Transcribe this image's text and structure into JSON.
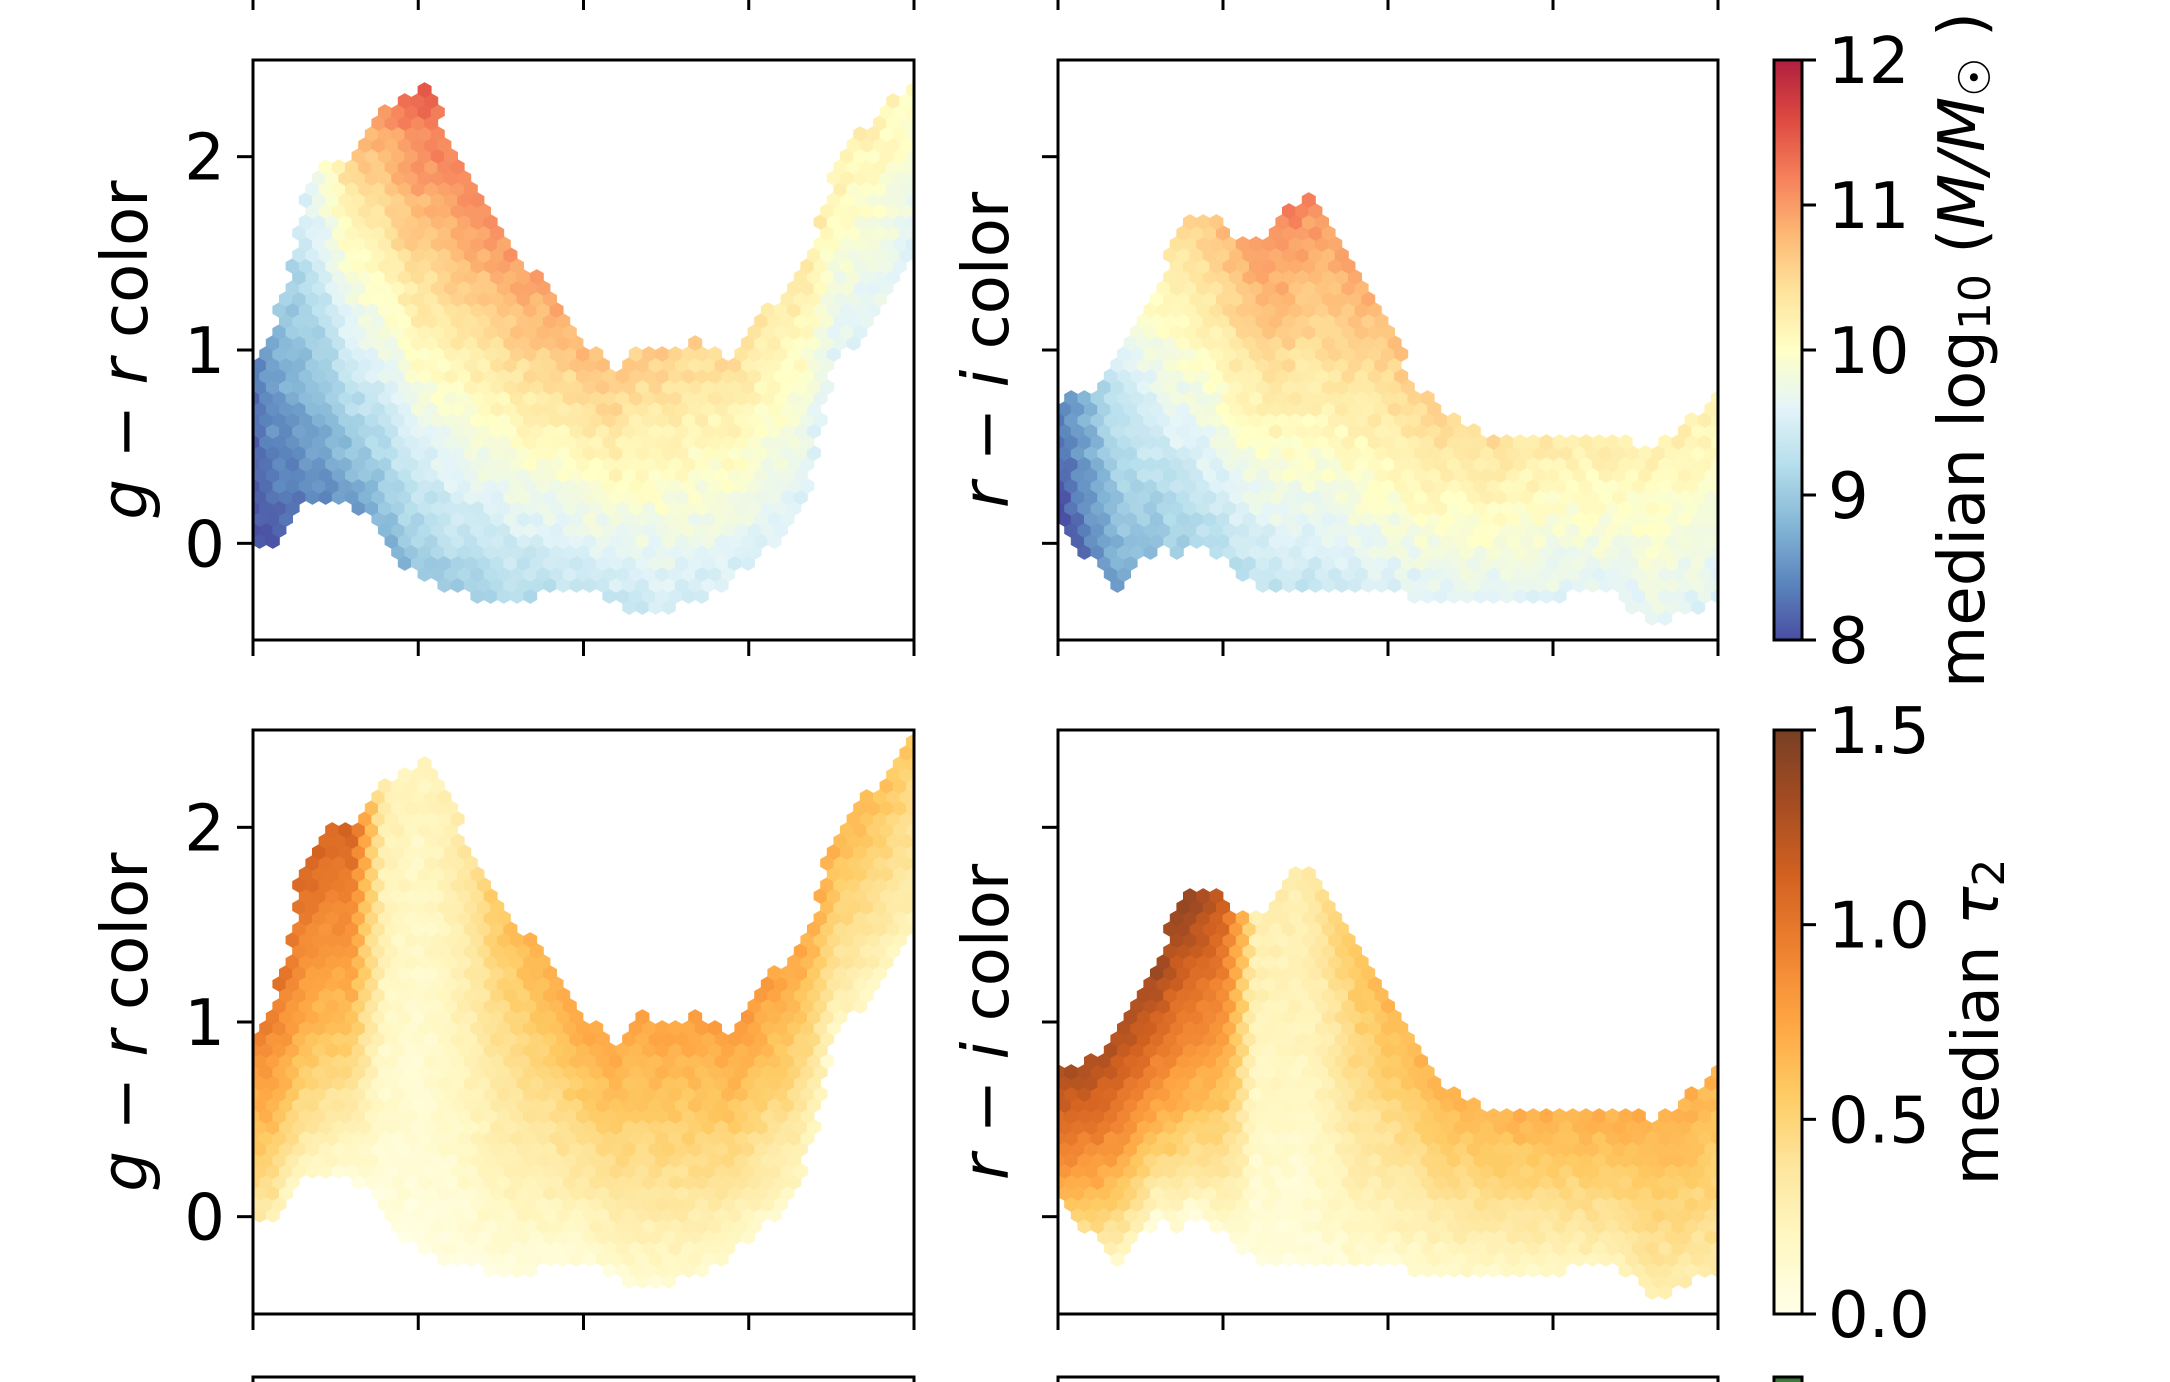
{
  "chart_data": [
    {
      "type": "hexbin",
      "panel": "top-left",
      "ylabel_parts": [
        {
          "t": "g",
          "i": true
        },
        {
          "t": " − "
        },
        {
          "t": "r",
          "i": true
        },
        {
          "t": " color"
        }
      ],
      "ylim": [
        -0.5,
        2.5
      ],
      "yticks": [
        0,
        1,
        2
      ],
      "ytick_labels": [
        "0",
        "1",
        "2"
      ],
      "xlim": [
        0,
        4
      ],
      "xticks": [
        0,
        1,
        2,
        3,
        4
      ],
      "colormap": "mass",
      "envelope": {
        "x": [
          0,
          0.1,
          0.2,
          0.3,
          0.45,
          0.6,
          0.75,
          0.9,
          1.05,
          1.2,
          1.4,
          1.6,
          1.8,
          2.0,
          2.2,
          2.3,
          2.5,
          2.7,
          2.9,
          3.1,
          3.3,
          3.4,
          3.5,
          3.6,
          3.8,
          4.0
        ],
        "upper": [
          0.92,
          1.05,
          1.35,
          1.8,
          2.0,
          2.0,
          2.2,
          2.3,
          2.35,
          2.1,
          1.8,
          1.5,
          1.3,
          1.05,
          0.9,
          1.05,
          1.0,
          1.05,
          0.95,
          1.2,
          1.4,
          1.6,
          1.9,
          2.1,
          2.2,
          2.45
        ],
        "lower": [
          0.0,
          -0.05,
          0.1,
          0.2,
          0.2,
          0.2,
          0.1,
          -0.1,
          -0.2,
          -0.25,
          -0.28,
          -0.3,
          -0.25,
          -0.25,
          -0.3,
          -0.35,
          -0.35,
          -0.3,
          -0.2,
          -0.05,
          0.1,
          0.45,
          0.9,
          1.0,
          1.2,
          1.5
        ]
      },
      "color_profile": {
        "x": [
          0,
          0.3,
          0.6,
          1.0,
          1.5,
          2.0,
          3.0,
          4.0
        ],
        "low": [
          8.0,
          8.3,
          8.6,
          8.9,
          9.1,
          9.3,
          9.5,
          9.6
        ],
        "high": [
          8.3,
          9.5,
          10.6,
          11.4,
          11.1,
          10.8,
          10.4,
          10.1
        ]
      }
    },
    {
      "type": "hexbin",
      "panel": "top-right",
      "ylabel_parts": [
        {
          "t": "r",
          "i": true
        },
        {
          "t": " − "
        },
        {
          "t": "i",
          "i": true
        },
        {
          "t": " color"
        }
      ],
      "ylim": [
        -0.5,
        2.5
      ],
      "yticks": [
        0,
        1,
        2
      ],
      "ytick_labels": [],
      "xlim": [
        0,
        4
      ],
      "xticks": [
        0,
        1,
        2,
        3,
        4
      ],
      "colormap": "mass",
      "envelope": {
        "x": [
          0,
          0.2,
          0.4,
          0.6,
          0.7,
          0.8,
          1.0,
          1.1,
          1.3,
          1.4,
          1.5,
          1.6,
          1.8,
          2.0,
          2.2,
          2.4,
          2.6,
          3.0,
          3.4,
          3.6,
          3.8,
          4.0
        ],
        "upper": [
          0.75,
          0.8,
          1.0,
          1.3,
          1.55,
          1.7,
          1.7,
          1.55,
          1.6,
          1.75,
          1.8,
          1.7,
          1.4,
          1.1,
          0.8,
          0.65,
          0.55,
          0.55,
          0.55,
          0.5,
          0.6,
          0.8
        ],
        "lower": [
          0.1,
          -0.1,
          -0.25,
          0.0,
          -0.1,
          0.0,
          -0.1,
          -0.2,
          -0.25,
          -0.25,
          -0.25,
          -0.25,
          -0.25,
          -0.25,
          -0.28,
          -0.3,
          -0.3,
          -0.28,
          -0.25,
          -0.45,
          -0.35,
          -0.3
        ]
      },
      "color_profile": {
        "x": [
          0,
          0.4,
          0.8,
          1.4,
          2.0,
          3.0,
          4.0
        ],
        "low": [
          8.0,
          8.7,
          9.1,
          9.3,
          9.5,
          9.6,
          9.6
        ],
        "high": [
          8.3,
          9.6,
          10.6,
          11.2,
          10.7,
          10.3,
          10.2
        ]
      }
    },
    {
      "type": "hexbin",
      "panel": "bottom-left",
      "ylabel_parts": [
        {
          "t": "g",
          "i": true
        },
        {
          "t": " − "
        },
        {
          "t": "r",
          "i": true
        },
        {
          "t": " color"
        }
      ],
      "ylim": [
        -0.5,
        2.5
      ],
      "yticks": [
        0,
        1,
        2
      ],
      "ytick_labels": [
        "0",
        "1",
        "2"
      ],
      "xlim": [
        0,
        4
      ],
      "xticks": [
        0,
        1,
        2,
        3,
        4
      ],
      "colormap": "tau",
      "envelope": {
        "x": [
          0,
          0.1,
          0.2,
          0.3,
          0.45,
          0.6,
          0.75,
          0.9,
          1.05,
          1.2,
          1.4,
          1.6,
          1.8,
          2.0,
          2.2,
          2.3,
          2.5,
          2.7,
          2.9,
          3.1,
          3.3,
          3.4,
          3.5,
          3.6,
          3.8,
          4.0
        ],
        "upper": [
          0.92,
          1.05,
          1.35,
          1.8,
          2.0,
          2.0,
          2.2,
          2.3,
          2.35,
          2.1,
          1.8,
          1.5,
          1.3,
          1.05,
          0.9,
          1.05,
          1.0,
          1.05,
          0.95,
          1.2,
          1.4,
          1.6,
          1.9,
          2.1,
          2.2,
          2.45
        ],
        "lower": [
          0.0,
          -0.05,
          0.1,
          0.2,
          0.2,
          0.2,
          0.1,
          -0.1,
          -0.2,
          -0.25,
          -0.28,
          -0.3,
          -0.25,
          -0.25,
          -0.3,
          -0.35,
          -0.35,
          -0.3,
          -0.2,
          -0.05,
          0.1,
          0.45,
          0.9,
          1.0,
          1.2,
          1.5
        ]
      },
      "color_profile": {
        "x": [
          0,
          0.3,
          0.6,
          0.8,
          1.0,
          1.2,
          1.5,
          2.0,
          2.5,
          3.0,
          3.5,
          4.0
        ],
        "low": [
          0.3,
          0.15,
          0.05,
          0.05,
          0.05,
          0.05,
          0.05,
          0.05,
          0.1,
          0.1,
          0.15,
          0.2
        ],
        "high": [
          0.9,
          1.1,
          1.1,
          0.3,
          0.2,
          0.3,
          0.6,
          0.75,
          0.75,
          0.8,
          0.7,
          0.55
        ]
      }
    },
    {
      "type": "hexbin",
      "panel": "bottom-right",
      "ylabel_parts": [
        {
          "t": "r",
          "i": true
        },
        {
          "t": " − "
        },
        {
          "t": "i",
          "i": true
        },
        {
          "t": " color"
        }
      ],
      "ylim": [
        -0.5,
        2.5
      ],
      "yticks": [
        0,
        1,
        2
      ],
      "ytick_labels": [],
      "xlim": [
        0,
        4
      ],
      "xticks": [
        0,
        1,
        2,
        3,
        4
      ],
      "colormap": "tau",
      "envelope": {
        "x": [
          0,
          0.2,
          0.4,
          0.6,
          0.7,
          0.8,
          1.0,
          1.1,
          1.3,
          1.4,
          1.5,
          1.6,
          1.8,
          2.0,
          2.2,
          2.4,
          2.6,
          3.0,
          3.4,
          3.6,
          3.8,
          4.0
        ],
        "upper": [
          0.75,
          0.8,
          1.0,
          1.3,
          1.55,
          1.7,
          1.7,
          1.55,
          1.6,
          1.75,
          1.8,
          1.7,
          1.4,
          1.1,
          0.8,
          0.65,
          0.55,
          0.55,
          0.55,
          0.5,
          0.6,
          0.8
        ],
        "lower": [
          0.1,
          -0.1,
          -0.25,
          0.0,
          -0.1,
          0.0,
          -0.1,
          -0.2,
          -0.25,
          -0.25,
          -0.25,
          -0.25,
          -0.25,
          -0.25,
          -0.28,
          -0.3,
          -0.3,
          -0.28,
          -0.25,
          -0.45,
          -0.35,
          -0.3
        ]
      },
      "color_profile": {
        "x": [
          0,
          0.4,
          0.8,
          1.0,
          1.2,
          1.5,
          1.8,
          2.0,
          3.0,
          4.0
        ],
        "low": [
          0.6,
          0.1,
          0.05,
          0.05,
          0.05,
          0.05,
          0.1,
          0.1,
          0.15,
          0.3
        ],
        "high": [
          1.3,
          1.3,
          1.4,
          1.2,
          0.3,
          0.3,
          0.6,
          0.65,
          0.7,
          0.7
        ]
      }
    }
  ],
  "colorbars": {
    "mass": {
      "range": [
        8,
        12
      ],
      "ticks": [
        8,
        9,
        10,
        11,
        12
      ],
      "tick_labels": [
        "8",
        "9",
        "10",
        "11",
        "12"
      ],
      "label_parts": [
        {
          "t": "median log"
        },
        {
          "t": "10",
          "sub": true
        },
        {
          "t": " ("
        },
        {
          "t": "M/M",
          "i": true
        },
        {
          "t": "☉",
          "sub": true
        },
        {
          "t": " )"
        }
      ],
      "stops": [
        "#313695",
        "#4575b4",
        "#74add1",
        "#abd9e9",
        "#e0f3f8",
        "#ffffbf",
        "#fee090",
        "#fdae61",
        "#f46d43",
        "#d73027",
        "#a50026"
      ]
    },
    "tau": {
      "range": [
        0,
        1.5
      ],
      "ticks": [
        0,
        0.5,
        1.0,
        1.5
      ],
      "tick_labels": [
        "0.0",
        "0.5",
        "1.0",
        "1.5"
      ],
      "label_parts": [
        {
          "t": "median "
        },
        {
          "t": "τ",
          "i": true
        },
        {
          "t": "2",
          "sub": true
        }
      ],
      "stops": [
        "#ffffe5",
        "#fff7bc",
        "#fee391",
        "#fec44f",
        "#fe9929",
        "#ec7014",
        "#cc4c02",
        "#993404",
        "#662506"
      ]
    }
  },
  "next_colorbar_color": "#3a7a3a"
}
